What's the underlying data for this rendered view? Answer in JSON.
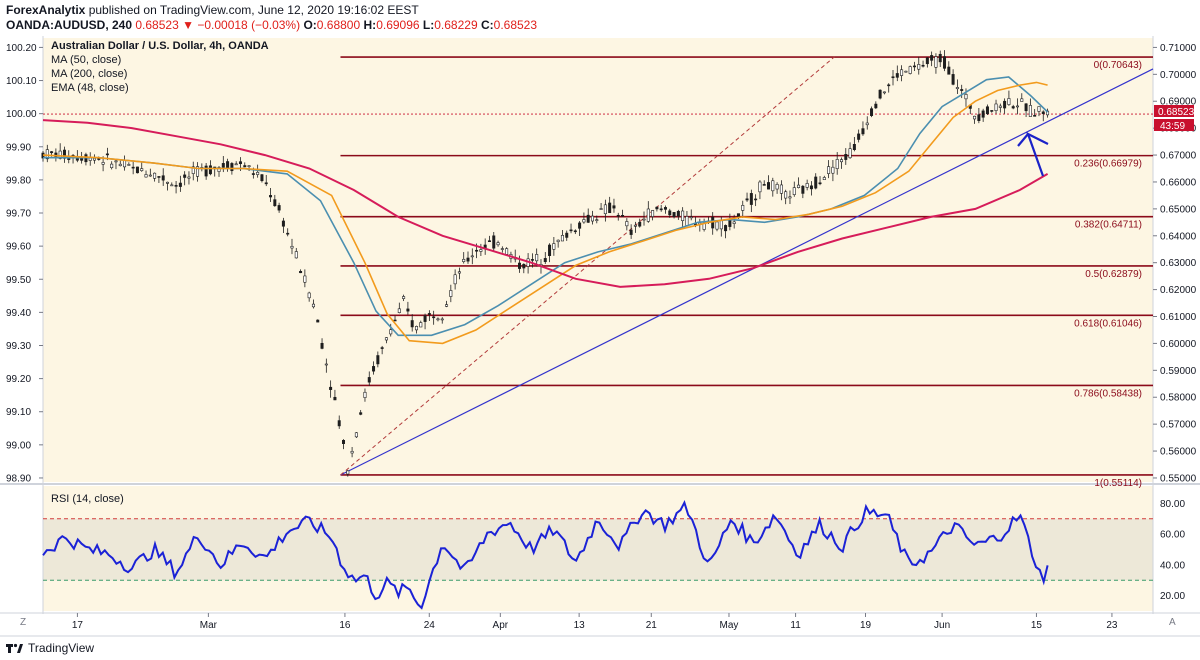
{
  "header": {
    "publisher": "ForexAnalytix",
    "published_text": "published on TradingView.com, June 12, 2020 19:16:02 EEST",
    "symbol": "OANDA:AUDUSD, 240",
    "last": "0.68523",
    "change_arrow": "▼",
    "change": "−0.00018 (−0.03%)",
    "open_label": "O:",
    "open": "0.68800",
    "high_label": "H:",
    "high": "0.69096",
    "low_label": "L:",
    "low": "0.68229",
    "close_label": "C:",
    "close": "0.68523"
  },
  "legend": {
    "title": "Australian Dollar / U.S. Dollar, 4h, OANDA",
    "ma50": "MA (50, close)",
    "ma200": "MA (200, close)",
    "ema48": "EMA (48, close)",
    "rsi": "RSI (14, close)"
  },
  "colors": {
    "background": "#fdf6e3",
    "rsi_band": "#ede8d8",
    "candle": "#1e1e1e",
    "ma50": "#4b8fb0",
    "ema48": "#f29b1d",
    "ma200": "#d61c5a",
    "fib_line": "#8b0a1a",
    "fib_text": "#8b0a1a",
    "trendline": "#3333cc",
    "channel": "#b23b3b",
    "rsi_line": "#1b22d6",
    "rsi_70": "#d13b3b",
    "rsi_30": "#3a9a6a",
    "last_price_bg": "#c8102e",
    "arrow": "#1b22c8"
  },
  "left_scale": [
    "100.20",
    "100.10",
    "100.00",
    "99.90",
    "99.80",
    "99.70",
    "99.60",
    "99.50",
    "99.40",
    "99.30",
    "99.20",
    "99.10",
    "99.00",
    "98.90"
  ],
  "x_labels": [
    "17",
    "Mar",
    "16",
    "24",
    "Apr",
    "13",
    "21",
    "May",
    "11",
    "19",
    "Jun",
    "15",
    "23"
  ],
  "rsi_labels": [
    "80.00",
    "60.00",
    "40.00",
    "20.00"
  ],
  "scale_buttons": {
    "left": "Z",
    "right": "A"
  },
  "last_price_tag": "0.68523",
  "countdown_tag": "43:59",
  "footer": {
    "brand": "TradingView",
    "logo_icon": "tradingview-logo-icon"
  },
  "fib_levels": [
    {
      "label": "0(0.70643)",
      "price": 0.70643
    },
    {
      "label": "0.236(0.66979)",
      "price": 0.66979
    },
    {
      "label": "0.382(0.64711)",
      "price": 0.64711
    },
    {
      "label": "0.5(0.62879)",
      "price": 0.62879
    },
    {
      "label": "0.618(0.61046)",
      "price": 0.61046
    },
    {
      "label": "0.786(0.58438)",
      "price": 0.58438
    },
    {
      "label": "1(0.55114)",
      "price": 0.55114
    }
  ],
  "chart_data": {
    "type": "line",
    "title": "Australian Dollar / U.S. Dollar, 4h, OANDA",
    "price_axis": [
      "0.71000",
      "0.70000",
      "0.69000",
      "0.68000",
      "0.67000",
      "0.66000",
      "0.65000",
      "0.64000",
      "0.63000",
      "0.62000",
      "0.61000",
      "0.60000",
      "0.59000",
      "0.58000",
      "0.57000",
      "0.56000",
      "0.55000"
    ],
    "ylim": [
      0.5485,
      0.7135
    ],
    "x_ticks": [
      "17",
      "Mar",
      "16",
      "24",
      "Apr",
      "13",
      "21",
      "May",
      "11",
      "19",
      "Jun",
      "15",
      "23"
    ],
    "x_tick_pos": [
      0.031,
      0.149,
      0.272,
      0.348,
      0.412,
      0.483,
      0.548,
      0.618,
      0.678,
      0.741,
      0.81,
      0.895,
      0.963
    ],
    "series": [
      {
        "name": "OANDA:AUDUSD",
        "x": [
          0,
          0.02,
          0.05,
          0.08,
          0.1,
          0.12,
          0.14,
          0.16,
          0.18,
          0.2,
          0.215,
          0.23,
          0.245,
          0.255,
          0.265,
          0.275,
          0.285,
          0.295,
          0.305,
          0.315,
          0.325,
          0.335,
          0.345,
          0.36,
          0.375,
          0.39,
          0.41,
          0.43,
          0.45,
          0.47,
          0.485,
          0.5,
          0.515,
          0.53,
          0.545,
          0.56,
          0.58,
          0.6,
          0.62,
          0.635,
          0.65,
          0.67,
          0.69,
          0.71,
          0.73,
          0.75,
          0.77,
          0.79,
          0.81,
          0.825,
          0.84,
          0.855,
          0.87,
          0.885,
          0.89,
          0.897,
          0.905
        ],
        "y": [
          0.6705,
          0.67,
          0.669,
          0.665,
          0.663,
          0.659,
          0.664,
          0.666,
          0.667,
          0.66,
          0.647,
          0.63,
          0.613,
          0.593,
          0.575,
          0.553,
          0.573,
          0.588,
          0.597,
          0.607,
          0.615,
          0.605,
          0.61,
          0.612,
          0.627,
          0.635,
          0.638,
          0.629,
          0.632,
          0.64,
          0.645,
          0.648,
          0.651,
          0.641,
          0.648,
          0.65,
          0.646,
          0.645,
          0.644,
          0.652,
          0.66,
          0.655,
          0.658,
          0.665,
          0.672,
          0.69,
          0.7,
          0.703,
          0.706,
          0.695,
          0.685,
          0.687,
          0.69,
          0.688,
          0.686,
          0.687,
          0.6852
        ]
      },
      {
        "name": "MA (50, close)",
        "x": [
          0,
          0.05,
          0.1,
          0.14,
          0.18,
          0.22,
          0.25,
          0.28,
          0.3,
          0.32,
          0.35,
          0.38,
          0.41,
          0.44,
          0.47,
          0.5,
          0.53,
          0.56,
          0.59,
          0.62,
          0.65,
          0.68,
          0.71,
          0.74,
          0.77,
          0.79,
          0.81,
          0.83,
          0.85,
          0.87,
          0.89,
          0.905
        ],
        "y": [
          0.669,
          0.669,
          0.667,
          0.665,
          0.665,
          0.663,
          0.653,
          0.63,
          0.612,
          0.603,
          0.603,
          0.607,
          0.614,
          0.622,
          0.63,
          0.634,
          0.637,
          0.641,
          0.645,
          0.646,
          0.645,
          0.647,
          0.65,
          0.655,
          0.665,
          0.678,
          0.688,
          0.693,
          0.698,
          0.699,
          0.692,
          0.686
        ]
      },
      {
        "name": "EMA (48, close)",
        "x": [
          0,
          0.05,
          0.1,
          0.14,
          0.18,
          0.22,
          0.26,
          0.29,
          0.31,
          0.33,
          0.36,
          0.39,
          0.42,
          0.45,
          0.48,
          0.51,
          0.54,
          0.57,
          0.6,
          0.63,
          0.66,
          0.69,
          0.72,
          0.75,
          0.78,
          0.8,
          0.82,
          0.84,
          0.86,
          0.88,
          0.895,
          0.905
        ],
        "y": [
          0.67,
          0.669,
          0.667,
          0.665,
          0.665,
          0.664,
          0.655,
          0.63,
          0.611,
          0.601,
          0.6,
          0.605,
          0.613,
          0.621,
          0.629,
          0.634,
          0.638,
          0.642,
          0.645,
          0.647,
          0.646,
          0.648,
          0.651,
          0.656,
          0.664,
          0.674,
          0.684,
          0.69,
          0.694,
          0.696,
          0.697,
          0.696
        ]
      },
      {
        "name": "MA (200, close)",
        "x": [
          0,
          0.04,
          0.08,
          0.12,
          0.16,
          0.2,
          0.24,
          0.28,
          0.32,
          0.36,
          0.4,
          0.44,
          0.48,
          0.52,
          0.56,
          0.6,
          0.64,
          0.68,
          0.72,
          0.76,
          0.8,
          0.84,
          0.88,
          0.905
        ],
        "y": [
          0.683,
          0.682,
          0.68,
          0.677,
          0.674,
          0.67,
          0.665,
          0.657,
          0.647,
          0.64,
          0.635,
          0.63,
          0.624,
          0.621,
          0.622,
          0.624,
          0.628,
          0.634,
          0.639,
          0.643,
          0.647,
          0.65,
          0.657,
          0.663
        ]
      }
    ],
    "rsi": {
      "name": "RSI (14, close)",
      "ylim": [
        10,
        90
      ],
      "levels": [
        70,
        30
      ],
      "x": [
        0,
        0.02,
        0.04,
        0.06,
        0.08,
        0.1,
        0.12,
        0.14,
        0.16,
        0.18,
        0.2,
        0.22,
        0.24,
        0.26,
        0.27,
        0.28,
        0.29,
        0.3,
        0.31,
        0.32,
        0.33,
        0.34,
        0.36,
        0.38,
        0.4,
        0.42,
        0.44,
        0.46,
        0.48,
        0.5,
        0.52,
        0.54,
        0.56,
        0.58,
        0.6,
        0.62,
        0.64,
        0.66,
        0.68,
        0.7,
        0.72,
        0.74,
        0.76,
        0.78,
        0.8,
        0.82,
        0.84,
        0.86,
        0.88,
        0.9,
        0.905
      ],
      "y": [
        48,
        58,
        50,
        47,
        38,
        50,
        35,
        60,
        40,
        55,
        44,
        62,
        68,
        58,
        40,
        30,
        33,
        20,
        28,
        22,
        25,
        12,
        55,
        35,
        60,
        68,
        50,
        63,
        42,
        70,
        52,
        76,
        66,
        78,
        38,
        70,
        54,
        73,
        47,
        66,
        52,
        74,
        72,
        40,
        48,
        66,
        52,
        58,
        72,
        30,
        40
      ]
    }
  }
}
